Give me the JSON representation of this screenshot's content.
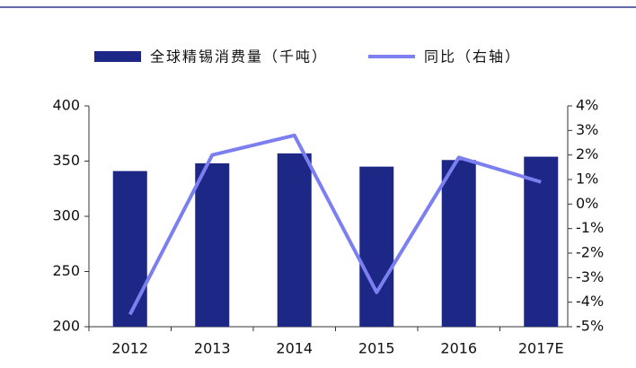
{
  "chart_data": {
    "type": "bar-line",
    "categories": [
      "2012",
      "2013",
      "2014",
      "2015",
      "2016",
      "2017E"
    ],
    "series": [
      {
        "name": "全球精锡消费量（千吨）",
        "type": "bar",
        "color": "#1c2786",
        "values": [
          341,
          348,
          357,
          345,
          351,
          354
        ]
      },
      {
        "name": "同比（右轴）",
        "type": "line",
        "axis": "y2",
        "color": "#7b7ff0",
        "values": [
          -4.5,
          2.0,
          2.8,
          -3.6,
          1.9,
          0.9
        ]
      }
    ],
    "ylim": [
      200,
      400
    ],
    "yticks": [
      200,
      250,
      300,
      350,
      400
    ],
    "y2lim": [
      -5,
      4
    ],
    "y2ticks": [
      {
        "value": -5,
        "label": "-5%"
      },
      {
        "value": -4,
        "label": "-4%"
      },
      {
        "value": -3,
        "label": "-3%"
      },
      {
        "value": -2,
        "label": "-2%"
      },
      {
        "value": -1,
        "label": "-1%"
      },
      {
        "value": 0,
        "label": "0%"
      },
      {
        "value": 1,
        "label": "1%"
      },
      {
        "value": 2,
        "label": "2%"
      },
      {
        "value": 3,
        "label": "3%"
      },
      {
        "value": 4,
        "label": "4%"
      }
    ],
    "grid": false,
    "legend": "top"
  }
}
